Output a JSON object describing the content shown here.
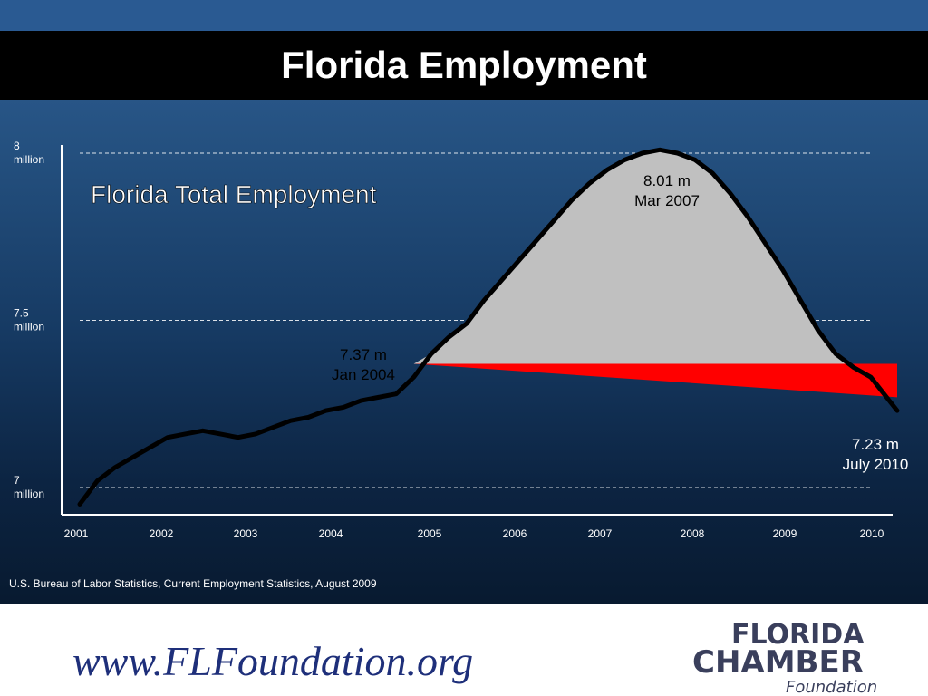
{
  "slide_title": "Florida Employment",
  "source_note": "U.S. Bureau of Labor Statistics, Current Employment Statistics,  August 2009",
  "footer": {
    "url": "www.FLFoundation.org",
    "logo_line1": "FLORIDA",
    "logo_line2": "CHAMBER",
    "logo_line3": "Foundation"
  },
  "colors": {
    "background_top": "#2f5f95",
    "background_bottom": "#081a30",
    "title_bar": "#000000",
    "area_fill": "#c0c0c0",
    "loss_fill": "#ff0000",
    "line": "#000000",
    "url_text": "#1e2f7a",
    "logo": "#3a3f5c"
  },
  "chart_data": {
    "type": "line",
    "title": "Florida Total Employment",
    "xlabel": "",
    "ylabel": "",
    "x_ticks": [
      "2001",
      "2002",
      "2003",
      "2004",
      "2005",
      "2006",
      "2007",
      "2008",
      "2009",
      "2010"
    ],
    "y_ticks": [
      {
        "value": 8,
        "label_line1": "8",
        "label_line2": "million"
      },
      {
        "value": 7.5,
        "label_line1": "7.5",
        "label_line2": "million"
      },
      {
        "value": 7,
        "label_line1": "7",
        "label_line2": "million"
      }
    ],
    "ylim": [
      6.94,
      8.03
    ],
    "grid": "dashed horizontal at 7, 7.5, 8",
    "series": [
      {
        "name": "",
        "x": [
          2001.0,
          2001.2,
          2001.4,
          2001.6,
          2001.8,
          2002.0,
          2002.2,
          2002.4,
          2002.6,
          2002.8,
          2003.0,
          2003.2,
          2003.4,
          2003.6,
          2003.8,
          2004.0,
          2004.2,
          2004.4,
          2004.6,
          2004.8,
          2005.0,
          2005.2,
          2005.4,
          2005.6,
          2005.8,
          2006.0,
          2006.2,
          2006.4,
          2006.6,
          2006.8,
          2007.0,
          2007.2,
          2007.4,
          2007.6,
          2007.8,
          2008.0,
          2008.2,
          2008.4,
          2008.6,
          2008.8,
          2009.0,
          2009.2,
          2009.4,
          2009.6,
          2009.8,
          2010.0,
          2010.15,
          2010.3
        ],
        "values": [
          6.95,
          7.02,
          7.06,
          7.09,
          7.12,
          7.15,
          7.16,
          7.17,
          7.16,
          7.15,
          7.16,
          7.18,
          7.2,
          7.21,
          7.23,
          7.24,
          7.26,
          7.27,
          7.28,
          7.33,
          7.4,
          7.45,
          7.49,
          7.56,
          7.62,
          7.68,
          7.74,
          7.8,
          7.86,
          7.91,
          7.95,
          7.98,
          8.0,
          8.01,
          8.0,
          7.98,
          7.94,
          7.88,
          7.81,
          7.73,
          7.65,
          7.56,
          7.47,
          7.4,
          7.36,
          7.33,
          7.28,
          7.23
        ]
      }
    ],
    "annotations": [
      {
        "label_line1": "8.01 m",
        "label_line2": "Mar 2007",
        "x": 2007.6,
        "y": 8.01
      },
      {
        "label_line1": "7.37 m",
        "label_line2": "Jan 2004",
        "x": 2004.8,
        "y": 7.37
      },
      {
        "label_line1": "7.23 m",
        "label_line2": "July 2010",
        "x": 2010.3,
        "y": 7.23
      }
    ],
    "reference_level": 7.37,
    "trend_end_value": 7.27
  }
}
